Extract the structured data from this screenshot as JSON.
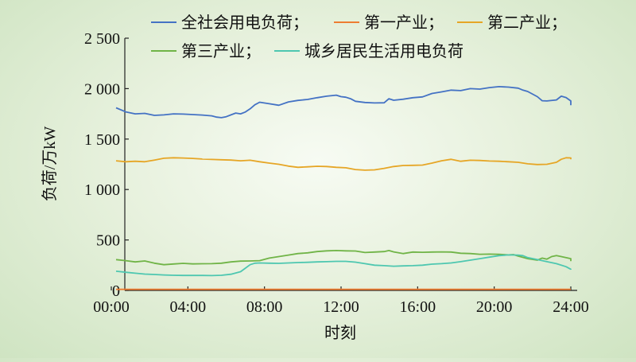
{
  "chart_data": {
    "type": "line",
    "xlabel": "时刻",
    "ylabel": "负荷/万kW",
    "ylim": [
      0,
      2500
    ],
    "xlim": [
      0,
      24
    ],
    "x_ticks": [
      0,
      4,
      8,
      12,
      16,
      20,
      24
    ],
    "x_tick_labels": [
      "00:00",
      "04:00",
      "08:00",
      "12:00",
      "16:00",
      "20:00",
      "24:00"
    ],
    "y_ticks": [
      0,
      500,
      1000,
      1500,
      2000,
      2500
    ],
    "y_tick_labels": [
      "0",
      "500",
      "1 000",
      "1 500",
      "2 000",
      "2 500"
    ],
    "grid": false,
    "legend_position": "top",
    "series": [
      {
        "name": "全社会用电负荷；",
        "color": "#4472c4",
        "points": [
          [
            0.25,
            1810
          ],
          [
            0.75,
            1770
          ],
          [
            1.25,
            1750
          ],
          [
            1.75,
            1755
          ],
          [
            2.25,
            1735
          ],
          [
            2.75,
            1740
          ],
          [
            3.25,
            1750
          ],
          [
            3.75,
            1748
          ],
          [
            4.25,
            1743
          ],
          [
            4.75,
            1738
          ],
          [
            5.25,
            1730
          ],
          [
            5.5,
            1718
          ],
          [
            5.75,
            1712
          ],
          [
            6.0,
            1722
          ],
          [
            6.25,
            1740
          ],
          [
            6.5,
            1758
          ],
          [
            6.75,
            1750
          ],
          [
            7.0,
            1768
          ],
          [
            7.25,
            1800
          ],
          [
            7.5,
            1840
          ],
          [
            7.75,
            1865
          ],
          [
            8.25,
            1850
          ],
          [
            8.75,
            1835
          ],
          [
            9.25,
            1868
          ],
          [
            9.75,
            1883
          ],
          [
            10.25,
            1893
          ],
          [
            10.75,
            1910
          ],
          [
            11.25,
            1925
          ],
          [
            11.75,
            1935
          ],
          [
            12.0,
            1920
          ],
          [
            12.25,
            1915
          ],
          [
            12.5,
            1900
          ],
          [
            12.75,
            1875
          ],
          [
            13.25,
            1863
          ],
          [
            13.75,
            1858
          ],
          [
            14.25,
            1860
          ],
          [
            14.5,
            1900
          ],
          [
            14.75,
            1885
          ],
          [
            15.25,
            1895
          ],
          [
            15.75,
            1910
          ],
          [
            16.25,
            1918
          ],
          [
            16.75,
            1952
          ],
          [
            17.25,
            1968
          ],
          [
            17.75,
            1985
          ],
          [
            18.25,
            1980
          ],
          [
            18.75,
            2000
          ],
          [
            19.25,
            1995
          ],
          [
            19.75,
            2010
          ],
          [
            20.25,
            2020
          ],
          [
            20.75,
            2015
          ],
          [
            21.25,
            2005
          ],
          [
            21.5,
            1985
          ],
          [
            21.75,
            1972
          ],
          [
            22.25,
            1920
          ],
          [
            22.5,
            1880
          ],
          [
            22.75,
            1878
          ],
          [
            23.25,
            1888
          ],
          [
            23.5,
            1925
          ],
          [
            23.75,
            1912
          ],
          [
            24.0,
            1878
          ],
          [
            24.25,
            1845
          ],
          [
            24.5,
            1835
          ]
        ]
      },
      {
        "name": "第一产业；",
        "color": "#ed7d31",
        "points": [
          [
            0.25,
            10
          ],
          [
            4,
            10
          ],
          [
            8,
            10
          ],
          [
            12,
            10
          ],
          [
            16,
            10
          ],
          [
            20,
            10
          ],
          [
            24.5,
            10
          ]
        ]
      },
      {
        "name": "第二产业；",
        "color": "#e6a626",
        "points": [
          [
            0.25,
            1285
          ],
          [
            0.75,
            1275
          ],
          [
            1.25,
            1280
          ],
          [
            1.75,
            1275
          ],
          [
            2.25,
            1292
          ],
          [
            2.75,
            1310
          ],
          [
            3.25,
            1315
          ],
          [
            3.75,
            1312
          ],
          [
            4.25,
            1308
          ],
          [
            4.75,
            1302
          ],
          [
            5.25,
            1298
          ],
          [
            5.75,
            1295
          ],
          [
            6.25,
            1292
          ],
          [
            6.75,
            1285
          ],
          [
            7.25,
            1290
          ],
          [
            7.75,
            1275
          ],
          [
            8.25,
            1262
          ],
          [
            8.75,
            1250
          ],
          [
            9.25,
            1232
          ],
          [
            9.75,
            1220
          ],
          [
            10.25,
            1225
          ],
          [
            10.75,
            1230
          ],
          [
            11.25,
            1228
          ],
          [
            11.75,
            1220
          ],
          [
            12.25,
            1215
          ],
          [
            12.75,
            1198
          ],
          [
            13.25,
            1192
          ],
          [
            13.75,
            1195
          ],
          [
            14.25,
            1210
          ],
          [
            14.75,
            1228
          ],
          [
            15.25,
            1238
          ],
          [
            15.75,
            1240
          ],
          [
            16.25,
            1242
          ],
          [
            16.75,
            1262
          ],
          [
            17.25,
            1285
          ],
          [
            17.75,
            1300
          ],
          [
            18.25,
            1280
          ],
          [
            18.75,
            1290
          ],
          [
            19.25,
            1288
          ],
          [
            19.75,
            1282
          ],
          [
            20.25,
            1280
          ],
          [
            20.75,
            1275
          ],
          [
            21.25,
            1270
          ],
          [
            21.75,
            1255
          ],
          [
            22.25,
            1248
          ],
          [
            22.75,
            1250
          ],
          [
            23.25,
            1270
          ],
          [
            23.5,
            1300
          ],
          [
            23.75,
            1315
          ],
          [
            24.25,
            1313
          ],
          [
            24.5,
            1300
          ]
        ]
      },
      {
        "name": "第三产业；",
        "color": "#70b447",
        "points": [
          [
            0.25,
            305
          ],
          [
            0.75,
            295
          ],
          [
            1.25,
            282
          ],
          [
            1.75,
            292
          ],
          [
            2.25,
            270
          ],
          [
            2.75,
            255
          ],
          [
            3.25,
            262
          ],
          [
            3.75,
            268
          ],
          [
            4.25,
            263
          ],
          [
            4.75,
            264
          ],
          [
            5.25,
            265
          ],
          [
            5.75,
            270
          ],
          [
            6.25,
            282
          ],
          [
            6.75,
            290
          ],
          [
            7.25,
            292
          ],
          [
            7.75,
            295
          ],
          [
            8.25,
            320
          ],
          [
            8.75,
            335
          ],
          [
            9.25,
            350
          ],
          [
            9.75,
            365
          ],
          [
            10.25,
            372
          ],
          [
            10.75,
            385
          ],
          [
            11.25,
            392
          ],
          [
            11.75,
            395
          ],
          [
            12.25,
            392
          ],
          [
            12.75,
            390
          ],
          [
            13.25,
            375
          ],
          [
            13.75,
            380
          ],
          [
            14.25,
            385
          ],
          [
            14.5,
            395
          ],
          [
            14.75,
            382
          ],
          [
            15.25,
            365
          ],
          [
            15.75,
            380
          ],
          [
            16.25,
            378
          ],
          [
            16.75,
            380
          ],
          [
            17.25,
            382
          ],
          [
            17.75,
            380
          ],
          [
            18.25,
            368
          ],
          [
            18.75,
            365
          ],
          [
            19.25,
            358
          ],
          [
            19.75,
            360
          ],
          [
            20.25,
            357
          ],
          [
            20.75,
            352
          ],
          [
            21.0,
            355
          ],
          [
            21.25,
            340
          ],
          [
            21.75,
            315
          ],
          [
            22.25,
            300
          ],
          [
            22.5,
            320
          ],
          [
            22.75,
            310
          ],
          [
            23.0,
            335
          ],
          [
            23.25,
            345
          ],
          [
            23.5,
            335
          ],
          [
            24.0,
            315
          ],
          [
            24.5,
            290
          ]
        ]
      },
      {
        "name": "城乡居民生活用电负荷",
        "color": "#4ec7b0",
        "points": [
          [
            0.25,
            190
          ],
          [
            0.75,
            180
          ],
          [
            1.25,
            170
          ],
          [
            1.75,
            162
          ],
          [
            2.25,
            158
          ],
          [
            2.75,
            153
          ],
          [
            3.25,
            150
          ],
          [
            3.75,
            148
          ],
          [
            4.25,
            148
          ],
          [
            4.75,
            148
          ],
          [
            5.25,
            147
          ],
          [
            5.75,
            150
          ],
          [
            6.25,
            160
          ],
          [
            6.75,
            185
          ],
          [
            7.0,
            220
          ],
          [
            7.25,
            255
          ],
          [
            7.5,
            270
          ],
          [
            7.75,
            272
          ],
          [
            8.25,
            270
          ],
          [
            8.75,
            268
          ],
          [
            9.25,
            272
          ],
          [
            9.75,
            276
          ],
          [
            10.25,
            278
          ],
          [
            10.75,
            282
          ],
          [
            11.25,
            285
          ],
          [
            11.75,
            288
          ],
          [
            12.25,
            288
          ],
          [
            12.75,
            280
          ],
          [
            13.25,
            265
          ],
          [
            13.75,
            250
          ],
          [
            14.25,
            245
          ],
          [
            14.75,
            240
          ],
          [
            15.25,
            243
          ],
          [
            15.75,
            245
          ],
          [
            16.25,
            250
          ],
          [
            16.75,
            260
          ],
          [
            17.25,
            265
          ],
          [
            17.75,
            272
          ],
          [
            18.25,
            285
          ],
          [
            18.75,
            300
          ],
          [
            19.25,
            315
          ],
          [
            19.75,
            330
          ],
          [
            20.25,
            345
          ],
          [
            20.75,
            352
          ],
          [
            21.25,
            350
          ],
          [
            21.5,
            345
          ],
          [
            21.75,
            325
          ],
          [
            22.25,
            305
          ],
          [
            22.75,
            285
          ],
          [
            23.25,
            265
          ],
          [
            23.75,
            235
          ],
          [
            24.25,
            210
          ],
          [
            24.5,
            205
          ]
        ]
      }
    ]
  }
}
